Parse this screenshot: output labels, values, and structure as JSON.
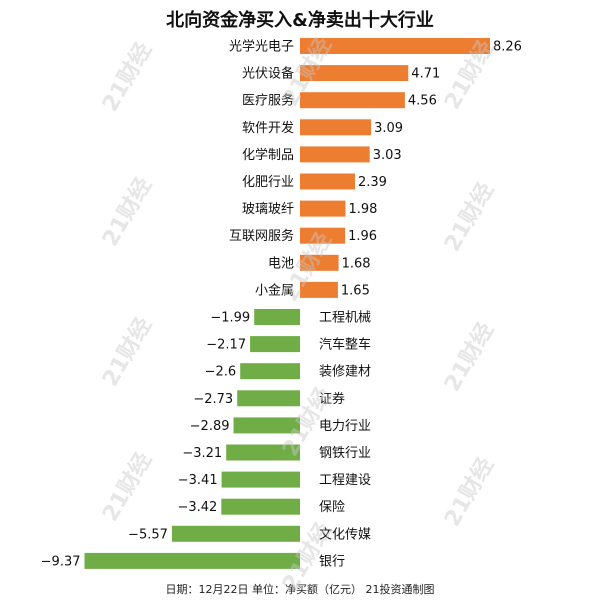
{
  "chart_data": {
    "type": "bar",
    "orientation": "horizontal",
    "title": "北向资金净买入&净卖出十大行业",
    "categories": [
      "光学光电子",
      "光伏设备",
      "医疗服务",
      "软件开发",
      "化学制品",
      "化肥行业",
      "玻璃玻纤",
      "互联网服务",
      "电池",
      "小金属",
      "工程机械",
      "汽车整车",
      "装修建材",
      "证券",
      "电力行业",
      "钢铁行业",
      "工程建设",
      "保险",
      "文化传媒",
      "银行"
    ],
    "values": [
      8.26,
      4.71,
      4.56,
      3.09,
      3.03,
      2.39,
      1.98,
      1.96,
      1.68,
      1.65,
      -1.99,
      -2.17,
      -2.6,
      -2.73,
      -2.89,
      -3.21,
      -3.41,
      -3.42,
      -5.57,
      -9.37
    ],
    "value_labels": [
      "8.26",
      "4.71",
      "4.56",
      "3.09",
      "3.03",
      "2.39",
      "1.98",
      "1.96",
      "1.68",
      "1.65",
      "−1.99",
      "−2.17",
      "−2.6",
      "−2.73",
      "−2.89",
      "−3.21",
      "−3.41",
      "−3.42",
      "−5.57",
      "−9.37"
    ],
    "colors": {
      "positive": "#ed7d31",
      "negative": "#70ad47"
    },
    "footer": "日期：12月22日 单位：净买额（亿元） 21投资通制图",
    "grid": false,
    "legend": "none"
  },
  "watermark": "21财经"
}
